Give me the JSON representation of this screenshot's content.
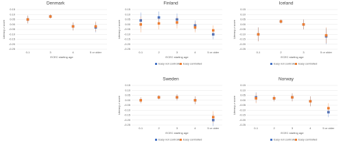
{
  "chart_data": [
    {
      "type": "errorbar",
      "title": "Denmark",
      "x_label": "ECEC starting age",
      "y_label": "Literacy z score",
      "categories": [
        "0-1",
        "3",
        "4",
        "5 or older"
      ],
      "series": [
        {
          "name": "Easy not controlled",
          "color": "#4472c4",
          "values": [
            0.05,
            0.08,
            -0.02,
            -0.03
          ],
          "errors": [
            0.04,
            0.02,
            0.04,
            0.05
          ]
        },
        {
          "name": "Easy controlled",
          "color": "#ed7d31",
          "values": [
            0.05,
            0.08,
            -0.02,
            -0.02
          ],
          "errors": [
            0.04,
            0.02,
            0.04,
            0.05
          ]
        }
      ],
      "ylim": [
        -0.25,
        0.15
      ],
      "yticks": [
        0.15,
        {
          "value": 0.1,
          "label": "0.10"
        },
        0.05,
        {
          "value": 0,
          "label": "0.00"
        },
        -0.05,
        {
          "value": -0.1,
          "label": "-0.10"
        },
        -0.15,
        {
          "value": -0.2,
          "label": "-0.20"
        },
        -0.25
      ],
      "grid": true,
      "legend": false
    },
    {
      "type": "errorbar",
      "title": "Finland",
      "x_label": "ECEC starting age",
      "y_label": "Literacy z score",
      "categories": [
        "0-1",
        "2",
        "3",
        "4",
        "5 or older"
      ],
      "series": [
        {
          "name": "Easy not controlled",
          "color": "#4472c4",
          "values": [
            0.04,
            0.07,
            0.05,
            -0.01,
            -0.1
          ],
          "errors": [
            0.08,
            0.06,
            0.06,
            0.05,
            0.05
          ]
        },
        {
          "name": "Easy controlled",
          "color": "#ed7d31",
          "values": [
            0.0,
            0.01,
            0.02,
            -0.03,
            -0.06
          ],
          "errors": [
            0.08,
            0.06,
            0.06,
            0.05,
            0.05
          ]
        }
      ],
      "ylim": [
        -0.25,
        0.15
      ],
      "yticks": [
        0.15,
        {
          "value": 0.1,
          "label": "0.10"
        },
        0.05,
        {
          "value": 0,
          "label": "0.00"
        },
        -0.05,
        {
          "value": -0.1,
          "label": "-0.10"
        },
        -0.15,
        {
          "value": -0.2,
          "label": "-0.20"
        },
        -0.25
      ],
      "grid": true,
      "legend": true
    },
    {
      "type": "errorbar",
      "title": "Iceland",
      "x_label": "ECEC starting age",
      "y_label": "Literacy z score",
      "categories": [
        "0-1",
        "2",
        "3",
        "5 or older"
      ],
      "series": [
        {
          "name": "Easy not controlled",
          "color": "#4472c4",
          "values": [
            -0.1,
            0.03,
            0.0,
            -0.12
          ],
          "errors": [
            0.07,
            0.02,
            0.05,
            0.08
          ]
        },
        {
          "name": "Easy controlled",
          "color": "#ed7d31",
          "values": [
            -0.1,
            0.03,
            0.0,
            -0.11
          ],
          "errors": [
            0.07,
            0.02,
            0.05,
            0.08
          ]
        }
      ],
      "ylim": [
        -0.25,
        0.15
      ],
      "yticks": [
        0.15,
        {
          "value": 0.1,
          "label": "0.10"
        },
        0.05,
        {
          "value": 0,
          "label": "0.00"
        },
        -0.05,
        {
          "value": -0.1,
          "label": "-0.10"
        },
        -0.15,
        {
          "value": -0.2,
          "label": "-0.20"
        },
        -0.25
      ],
      "grid": true,
      "legend": true
    },
    {
      "type": "errorbar",
      "title": "Sweden",
      "x_label": "ECEC starting age",
      "y_label": "Literacy z score",
      "categories": [
        "0-1",
        "2",
        "3",
        "4",
        "5 or older"
      ],
      "series": [
        {
          "name": "Easy not controlled",
          "color": "#4472c4",
          "values": [
            0.0,
            0.03,
            0.03,
            0.0,
            -0.2
          ],
          "errors": [
            0.03,
            0.02,
            0.03,
            0.04,
            0.06
          ]
        },
        {
          "name": "Easy controlled",
          "color": "#ed7d31",
          "values": [
            0.0,
            0.03,
            0.03,
            0.0,
            -0.17
          ],
          "errors": [
            0.03,
            0.02,
            0.03,
            0.04,
            0.06
          ]
        }
      ],
      "ylim": [
        -0.25,
        0.15
      ],
      "yticks": [
        0.15,
        {
          "value": 0.1,
          "label": "0.10"
        },
        0.05,
        {
          "value": 0,
          "label": "0.00"
        },
        -0.05,
        {
          "value": -0.1,
          "label": "-0.10"
        },
        -0.15,
        {
          "value": -0.2,
          "label": "-0.20"
        },
        -0.25
      ],
      "grid": true,
      "legend": true
    },
    {
      "type": "errorbar",
      "title": "Norway",
      "x_label": "ECEC starting age",
      "y_label": "Literacy z score",
      "categories": [
        "0-1",
        "2",
        "3",
        "4",
        "5 or older"
      ],
      "series": [
        {
          "name": "Easy not controlled",
          "color": "#4472c4",
          "values": [
            0.03,
            0.02,
            0.03,
            -0.01,
            -0.12
          ],
          "errors": [
            0.05,
            0.03,
            0.04,
            0.05,
            0.05
          ]
        },
        {
          "name": "Easy controlled",
          "color": "#ed7d31",
          "values": [
            0.02,
            0.02,
            0.03,
            -0.01,
            -0.08
          ],
          "errors": [
            0.05,
            0.03,
            0.04,
            0.05,
            0.05
          ]
        }
      ],
      "ylim": [
        -0.25,
        0.15
      ],
      "yticks": [
        0.15,
        {
          "value": 0.1,
          "label": "0.10"
        },
        0.05,
        {
          "value": 0,
          "label": "0.00"
        },
        -0.05,
        {
          "value": -0.1,
          "label": "-0.10"
        },
        -0.15,
        {
          "value": -0.2,
          "label": "-0.20"
        },
        -0.25
      ],
      "grid": true,
      "legend": true
    }
  ]
}
